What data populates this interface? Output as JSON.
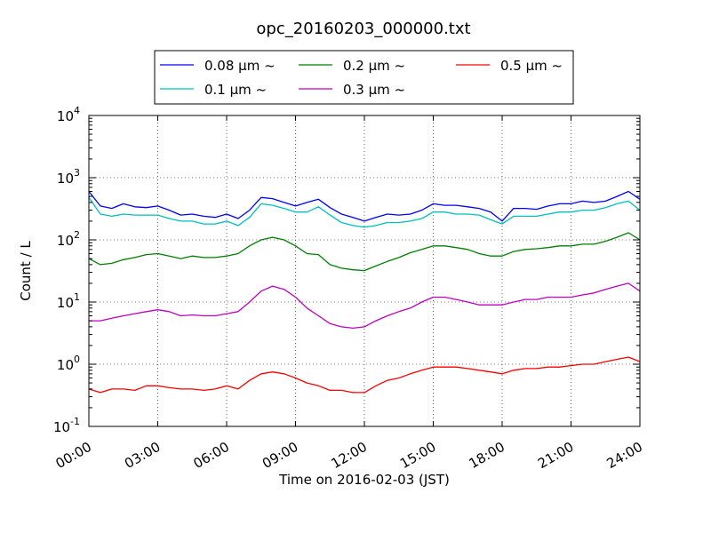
{
  "chart_data": {
    "type": "line",
    "title": "opc_20160203_000000.txt",
    "xlabel": "Time on 2016-02-03 (JST)",
    "ylabel": "Count / L",
    "xlim": [
      "00:00",
      "24:00"
    ],
    "ylim": [
      0.1,
      10000
    ],
    "yscale": "log",
    "grid": true,
    "legend_position": "top-center",
    "xticks": [
      "00:00",
      "03:00",
      "06:00",
      "09:00",
      "12:00",
      "15:00",
      "18:00",
      "21:00",
      "24:00"
    ],
    "yticks": [
      {
        "value": 0.1,
        "base": "10",
        "exp": "-1"
      },
      {
        "value": 1,
        "base": "10",
        "exp": "0"
      },
      {
        "value": 10,
        "base": "10",
        "exp": "1"
      },
      {
        "value": 100,
        "base": "10",
        "exp": "2"
      },
      {
        "value": 1000,
        "base": "10",
        "exp": "3"
      },
      {
        "value": 10000,
        "base": "10",
        "exp": "4"
      }
    ],
    "x": [
      "00:00",
      "00:30",
      "01:00",
      "01:30",
      "02:00",
      "02:30",
      "03:00",
      "03:30",
      "04:00",
      "04:30",
      "05:00",
      "05:30",
      "06:00",
      "06:30",
      "07:00",
      "07:30",
      "08:00",
      "08:30",
      "09:00",
      "09:30",
      "10:00",
      "10:30",
      "11:00",
      "11:30",
      "12:00",
      "12:30",
      "13:00",
      "13:30",
      "14:00",
      "14:30",
      "15:00",
      "15:30",
      "16:00",
      "16:30",
      "17:00",
      "17:30",
      "18:00",
      "18:30",
      "19:00",
      "19:30",
      "20:00",
      "20:30",
      "21:00",
      "21:30",
      "22:00",
      "22:30",
      "23:00",
      "23:30",
      "24:00"
    ],
    "series": [
      {
        "name": "0.08 μm ~",
        "color": "#0000ff",
        "values": [
          600,
          350,
          320,
          380,
          340,
          330,
          350,
          300,
          250,
          260,
          240,
          230,
          260,
          220,
          300,
          480,
          460,
          400,
          350,
          400,
          450,
          330,
          260,
          230,
          200,
          230,
          260,
          250,
          260,
          300,
          380,
          360,
          360,
          340,
          320,
          280,
          200,
          320,
          320,
          310,
          350,
          380,
          380,
          420,
          400,
          420,
          500,
          600,
          450
        ]
      },
      {
        "name": "0.1 μm ~",
        "color": "#00bfbf",
        "values": [
          480,
          260,
          240,
          260,
          250,
          250,
          250,
          220,
          200,
          200,
          180,
          180,
          200,
          170,
          230,
          380,
          360,
          320,
          280,
          280,
          340,
          250,
          190,
          170,
          160,
          170,
          190,
          190,
          200,
          220,
          280,
          280,
          260,
          260,
          250,
          210,
          180,
          240,
          240,
          240,
          260,
          280,
          280,
          300,
          300,
          330,
          380,
          420,
          300
        ]
      },
      {
        "name": "0.2 μm ~",
        "color": "#008000",
        "values": [
          50,
          40,
          42,
          48,
          52,
          58,
          60,
          55,
          50,
          55,
          52,
          52,
          55,
          60,
          80,
          100,
          110,
          100,
          80,
          60,
          58,
          40,
          35,
          33,
          32,
          38,
          45,
          52,
          62,
          70,
          80,
          80,
          75,
          70,
          60,
          55,
          55,
          65,
          70,
          72,
          75,
          80,
          80,
          85,
          85,
          95,
          110,
          130,
          100
        ]
      },
      {
        "name": "0.3 μm ~",
        "color": "#bf00bf",
        "values": [
          5,
          5,
          5.5,
          6,
          6.5,
          7,
          7.5,
          7,
          6,
          6.2,
          6,
          6,
          6.5,
          7,
          10,
          15,
          18,
          16,
          12,
          8,
          6,
          4.5,
          4,
          3.8,
          4,
          5,
          6,
          7,
          8,
          10,
          12,
          12,
          11,
          10,
          9,
          9,
          9,
          10,
          11,
          11,
          12,
          12,
          12,
          13,
          14,
          16,
          18,
          20,
          15
        ]
      },
      {
        "name": "0.5 μm ~",
        "color": "#ff0000",
        "values": [
          0.4,
          0.35,
          0.4,
          0.4,
          0.38,
          0.45,
          0.45,
          0.42,
          0.4,
          0.4,
          0.38,
          0.4,
          0.45,
          0.4,
          0.55,
          0.7,
          0.75,
          0.7,
          0.6,
          0.5,
          0.45,
          0.38,
          0.38,
          0.35,
          0.35,
          0.45,
          0.55,
          0.6,
          0.7,
          0.8,
          0.9,
          0.9,
          0.9,
          0.85,
          0.8,
          0.75,
          0.7,
          0.8,
          0.85,
          0.85,
          0.9,
          0.9,
          0.95,
          1.0,
          1.0,
          1.1,
          1.2,
          1.3,
          1.1
        ]
      }
    ]
  }
}
